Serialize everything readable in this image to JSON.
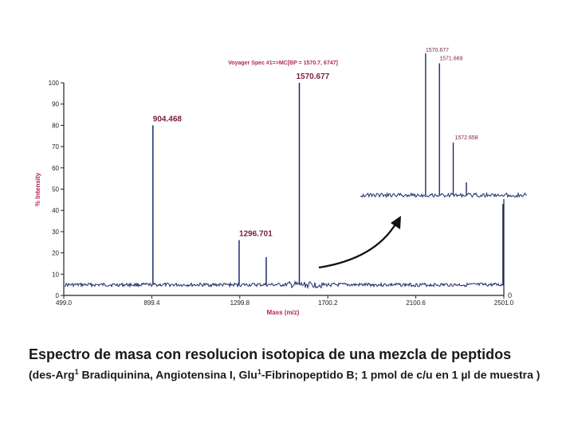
{
  "chart_data": [
    {
      "type": "line",
      "title": "Voyager Spec #1=>MC[BP = 1570.7, 6747]",
      "xlabel": "Mass (m/z)",
      "ylabel": "% Intensity",
      "xlim": [
        499.0,
        2501.0
      ],
      "ylim": [
        0,
        100
      ],
      "xticks": [
        "499.0",
        "899.4",
        "1299.8",
        "1700.2",
        "2100.6",
        "2501.0"
      ],
      "yticks": [
        "0",
        "10",
        "20",
        "30",
        "40",
        "50",
        "60",
        "70",
        "80",
        "90",
        "100"
      ],
      "right_axis_label": "0",
      "baseline": 5,
      "peaks": [
        {
          "mz": 904.468,
          "intensity": 80,
          "label": "904.468"
        },
        {
          "mz": 1296.701,
          "intensity": 26,
          "label": "1296.701"
        },
        {
          "mz": 1420.0,
          "intensity": 18,
          "label": ""
        },
        {
          "mz": 1570.677,
          "intensity": 100,
          "label": "1570.677"
        },
        {
          "mz": 2497.0,
          "intensity": 43,
          "label": ""
        }
      ],
      "grid": false,
      "color": "#1f2a6b",
      "label_color": "#7a1e3c"
    },
    {
      "type": "line",
      "title": "",
      "xlim": [
        1566.0,
        1578.0
      ],
      "ylim": [
        0,
        100
      ],
      "baseline": 3,
      "peaks": [
        {
          "mz": 1570.677,
          "intensity": 100,
          "label": "1570.677"
        },
        {
          "mz": 1571.669,
          "intensity": 93,
          "label": "1571.669"
        },
        {
          "mz": 1572.658,
          "intensity": 37,
          "label": "1572.658"
        },
        {
          "mz": 1573.6,
          "intensity": 9,
          "label": ""
        }
      ],
      "color": "#1f2a6b",
      "label_color": "#7a1e3c"
    }
  ],
  "caption": {
    "title": "Espectro de masa con resolucion isotopica de una mezcla de peptidos",
    "detail_a": "(des-Arg",
    "sup_a": "1",
    "detail_b": " Bradiquinina, Angiotensina I, Glu",
    "sup_b": "1",
    "detail_c": "-Fibrinopeptido B; 1 pmol de c/u en 1 ",
    "micro": "µ",
    "detail_d": "l de muestra )"
  }
}
